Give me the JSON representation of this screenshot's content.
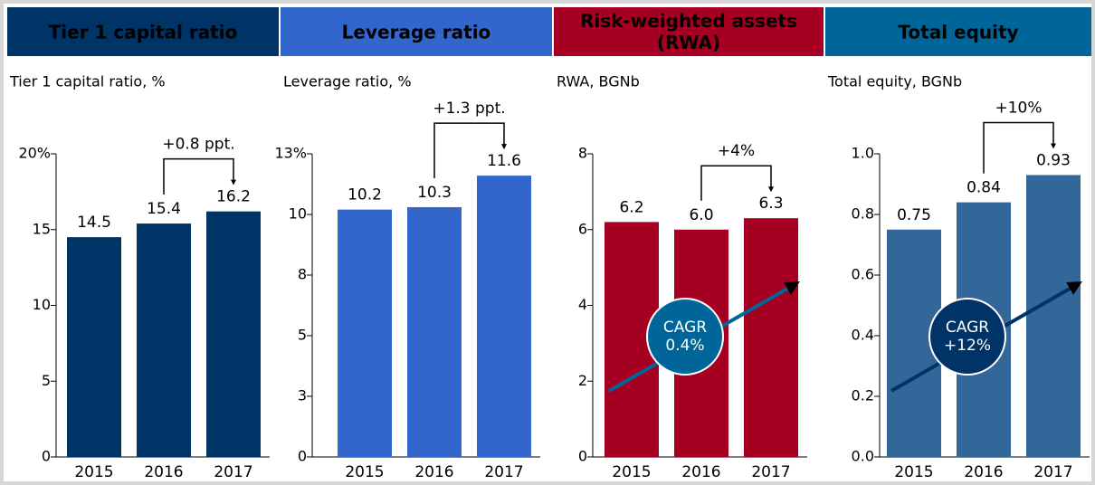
{
  "chart_data": [
    {
      "type": "bar",
      "title": "Tier 1 capital ratio",
      "header_color": "#003366",
      "subtitle": "Tier 1 capital ratio, %",
      "categories": [
        "2015",
        "2016",
        "2017"
      ],
      "values": [
        14.5,
        15.4,
        16.2
      ],
      "color": "#003366",
      "ylim": [
        0,
        20
      ],
      "yticks": [
        0,
        5,
        10,
        15,
        {
          "value": 20,
          "label": "20%"
        }
      ],
      "change": "+0.8 ppt."
    },
    {
      "type": "bar",
      "title": "Leverage ratio",
      "header_color": "#3366cc",
      "subtitle": "Leverage ratio, %",
      "categories": [
        "2015",
        "2016",
        "2017"
      ],
      "values": [
        10.2,
        10.3,
        11.6
      ],
      "color": "#3366cc",
      "ylim": [
        0,
        12.5
      ],
      "yticks": [
        0,
        {
          "value": 2.5,
          "label": "3"
        },
        5,
        {
          "value": 7.5,
          "label": "8"
        },
        10,
        {
          "value": 12.5,
          "label": "13%"
        }
      ],
      "change": "+1.3 ppt."
    },
    {
      "type": "bar",
      "title": "Risk-weighted assets (RWA)",
      "header_color": "#a50021",
      "subtitle": "RWA, BGNb",
      "categories": [
        "2015",
        "2016",
        "2017"
      ],
      "values": [
        6.2,
        6.0,
        6.3
      ],
      "value_labels": [
        "6.2",
        "6.0",
        "6.3"
      ],
      "color": "#a50021",
      "ylim": [
        0,
        8
      ],
      "yticks": [
        0,
        2,
        4,
        6,
        8
      ],
      "change": "+4%",
      "cagr": [
        "CAGR",
        "0.4%"
      ],
      "cagr_color": "#006699"
    },
    {
      "type": "bar",
      "title": "Total equity",
      "header_color": "#006699",
      "subtitle": "Total equity, BGNb",
      "categories": [
        "2015",
        "2016",
        "2017"
      ],
      "values": [
        0.75,
        0.84,
        0.93
      ],
      "color": "#336699",
      "ylim": [
        0,
        1
      ],
      "yticks": [
        {
          "value": 0,
          "label": "0.0"
        },
        0.2,
        0.4,
        0.6,
        0.8,
        {
          "value": 1,
          "label": "1.0"
        }
      ],
      "change": "+10%",
      "cagr": [
        "CAGR",
        "+12%"
      ],
      "cagr_color": "#003366"
    }
  ]
}
